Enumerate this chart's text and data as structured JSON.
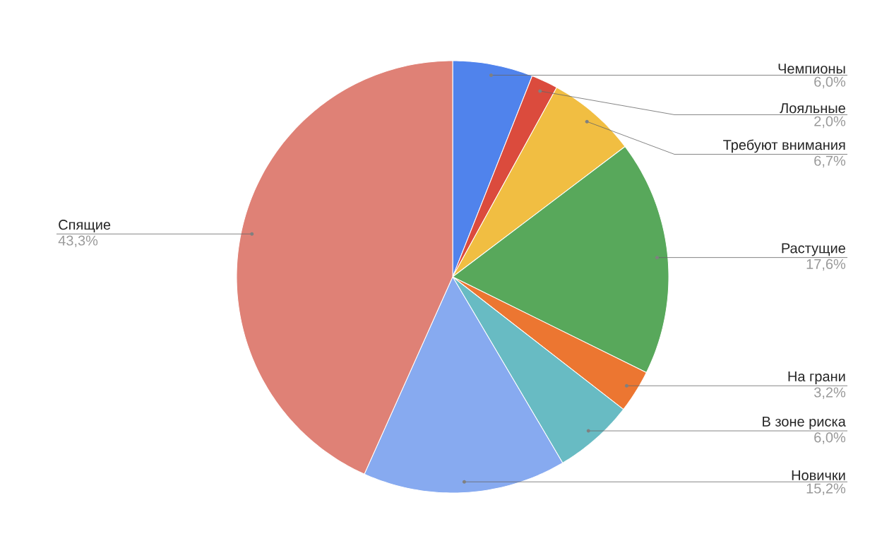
{
  "chart_data": {
    "type": "pie",
    "categories": [
      "Чемпионы",
      "Лояльные",
      "Требуют внимания",
      "Растущие",
      "На грани",
      "В зоне риска",
      "Новички",
      "Спящие"
    ],
    "values": [
      6.0,
      2.0,
      6.7,
      17.6,
      3.2,
      6.0,
      15.2,
      43.3
    ],
    "colors": [
      "#5083ec",
      "#db4b3d",
      "#f1be42",
      "#58a85b",
      "#ec7631",
      "#68bbc3",
      "#87aaf0",
      "#df8176"
    ],
    "value_labels": [
      "6,0%",
      "2,0%",
      "6,7%",
      "17,6%",
      "3,2%",
      "6,0%",
      "15,2%",
      "43,3%"
    ]
  }
}
